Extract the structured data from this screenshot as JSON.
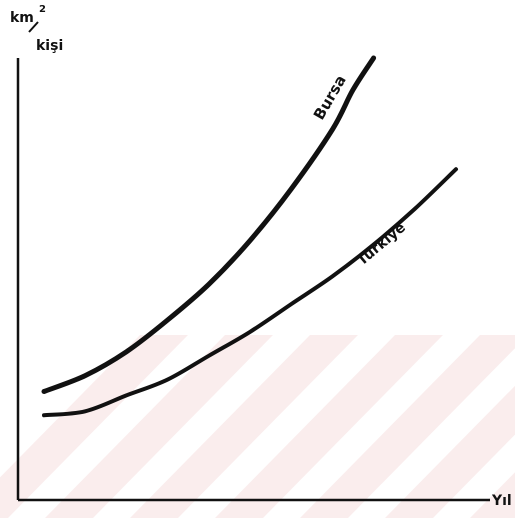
{
  "chart_data": {
    "type": "line",
    "xlabel": "Yıl",
    "ylabel": {
      "superscript": "2",
      "line1": "km",
      "line2": "kişi"
    },
    "x_ticks": [],
    "y_ticks": [],
    "grid": false,
    "legend": "none",
    "xlim": [
      0,
      100
    ],
    "ylim": [
      0,
      100
    ],
    "series": [
      {
        "name": "Bursa",
        "x": [
          0,
          10,
          20,
          30,
          40,
          50,
          60,
          70,
          75,
          80
        ],
        "y": [
          16,
          20,
          26,
          34,
          43,
          54,
          67,
          82,
          92,
          100
        ]
      },
      {
        "name": "Türkiye",
        "x": [
          0,
          10,
          20,
          30,
          40,
          50,
          60,
          70,
          80,
          90,
          100
        ],
        "y": [
          10,
          11,
          15,
          19,
          25,
          31,
          38,
          45,
          53,
          62,
          72
        ]
      }
    ],
    "colors": {
      "line": "#111111",
      "axis": "#111111",
      "watermark": "#f6dede"
    }
  }
}
